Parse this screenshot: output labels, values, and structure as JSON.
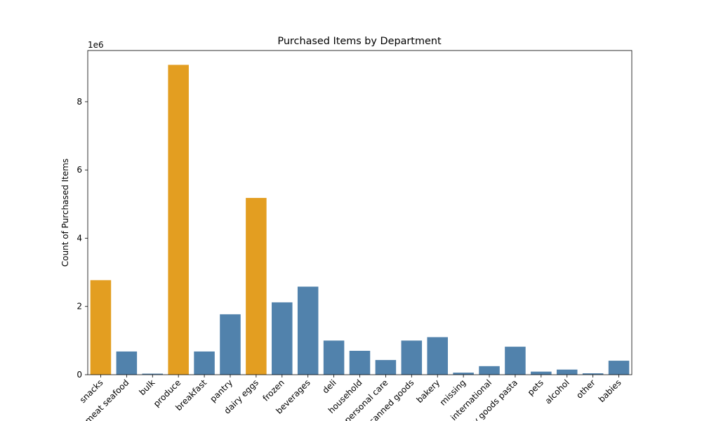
{
  "chart_data": {
    "type": "bar",
    "title": "Purchased Items by Department",
    "xlabel": "",
    "ylabel": "Count of Purchased Items",
    "y_multiplier": "1e6",
    "ylim": [
      0,
      9.5
    ],
    "yticks": [
      0,
      2,
      4,
      6,
      8
    ],
    "categories": [
      "snacks",
      "meat seafood",
      "bulk",
      "produce",
      "breakfast",
      "pantry",
      "dairy eggs",
      "frozen",
      "beverages",
      "deli",
      "household",
      "personal care",
      "canned goods",
      "bakery",
      "missing",
      "international",
      "dry goods pasta",
      "pets",
      "alcohol",
      "other",
      "babies"
    ],
    "values": [
      2.77,
      0.68,
      0.03,
      9.08,
      0.68,
      1.77,
      5.18,
      2.12,
      2.58,
      1.0,
      0.7,
      0.43,
      1.0,
      1.1,
      0.06,
      0.25,
      0.82,
      0.09,
      0.15,
      0.04,
      0.41
    ],
    "highlighted": [
      "snacks",
      "produce",
      "dairy eggs"
    ],
    "grid": false,
    "colors": {
      "highlight": "#e39e21",
      "default": "#5182ac"
    }
  }
}
